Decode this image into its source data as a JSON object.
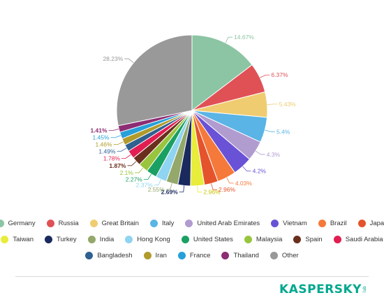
{
  "chart_data": {
    "type": "pie",
    "title": "",
    "slices": [
      {
        "label": "Germany",
        "value": 14.67,
        "value_label": "14.67%",
        "color": "#8cc5a3"
      },
      {
        "label": "Russia",
        "value": 6.37,
        "value_label": "6.37%",
        "color": "#e05156"
      },
      {
        "label": "Great Britain",
        "value": 5.43,
        "value_label": "5.43%",
        "color": "#f0cc70"
      },
      {
        "label": "Italy",
        "value": 5.4,
        "value_label": "5.4%",
        "color": "#5ab4e5"
      },
      {
        "label": "United Arab Emirates",
        "value": 4.3,
        "value_label": "4.3%",
        "color": "#b19cd0"
      },
      {
        "label": "Vietnam",
        "value": 4.2,
        "value_label": "4.2%",
        "color": "#6a52d6"
      },
      {
        "label": "Brazil",
        "value": 4.03,
        "value_label": "4.03%",
        "color": "#f5793a"
      },
      {
        "label": "Japan",
        "value": 2.96,
        "value_label": "2.96%",
        "color": "#e4532b"
      },
      {
        "label": "Taiwan",
        "value": 2.96,
        "value_label": "2.96%",
        "color": "#e8ec3a"
      },
      {
        "label": "Turkey",
        "value": 2.69,
        "value_label": "2.69%",
        "color": "#1a2a5e"
      },
      {
        "label": "India",
        "value": 2.55,
        "value_label": "2.55%",
        "color": "#93a86a"
      },
      {
        "label": "Hong Kong",
        "value": 2.37,
        "value_label": "2.37%",
        "color": "#8fd4f0"
      },
      {
        "label": "United States",
        "value": 2.27,
        "value_label": "2.27%",
        "color": "#1aa063"
      },
      {
        "label": "Malaysia",
        "value": 2.1,
        "value_label": "2.1%",
        "color": "#98c53d"
      },
      {
        "label": "Spain",
        "value": 1.87,
        "value_label": "1.87%",
        "color": "#6a2f1c"
      },
      {
        "label": "Saudi Arabia",
        "value": 1.78,
        "value_label": "1.78%",
        "color": "#e21d52"
      },
      {
        "label": "Bangladesh",
        "value": 1.49,
        "value_label": "1.49%",
        "color": "#2f6191"
      },
      {
        "label": "Iran",
        "value": 1.46,
        "value_label": "1.46%",
        "color": "#b09b2c"
      },
      {
        "label": "France",
        "value": 1.45,
        "value_label": "1.45%",
        "color": "#27a0d9"
      },
      {
        "label": "Thailand",
        "value": 1.41,
        "value_label": "1.41%",
        "color": "#8d2d74"
      },
      {
        "label": "Other",
        "value": 28.23,
        "value_label": "28.23%",
        "color": "#999999"
      }
    ],
    "legend_position": "bottom",
    "legend_rows": [
      [
        "Germany",
        "Russia",
        "Great Britain",
        "Italy",
        "United Arab Emirates",
        "Vietnam",
        "Brazil",
        "Japan"
      ],
      [
        "Taiwan",
        "Turkey",
        "India",
        "Hong Kong",
        "United States",
        "Malaysia",
        "Spain",
        "Saudi Arabia"
      ],
      [
        "Bangladesh",
        "Iran",
        "France",
        "Thailand",
        "Other"
      ]
    ]
  },
  "brand": {
    "name_part1": "KASPERSKY",
    "name_part2": "",
    "sub": "lab",
    "color": "#00a88e"
  }
}
